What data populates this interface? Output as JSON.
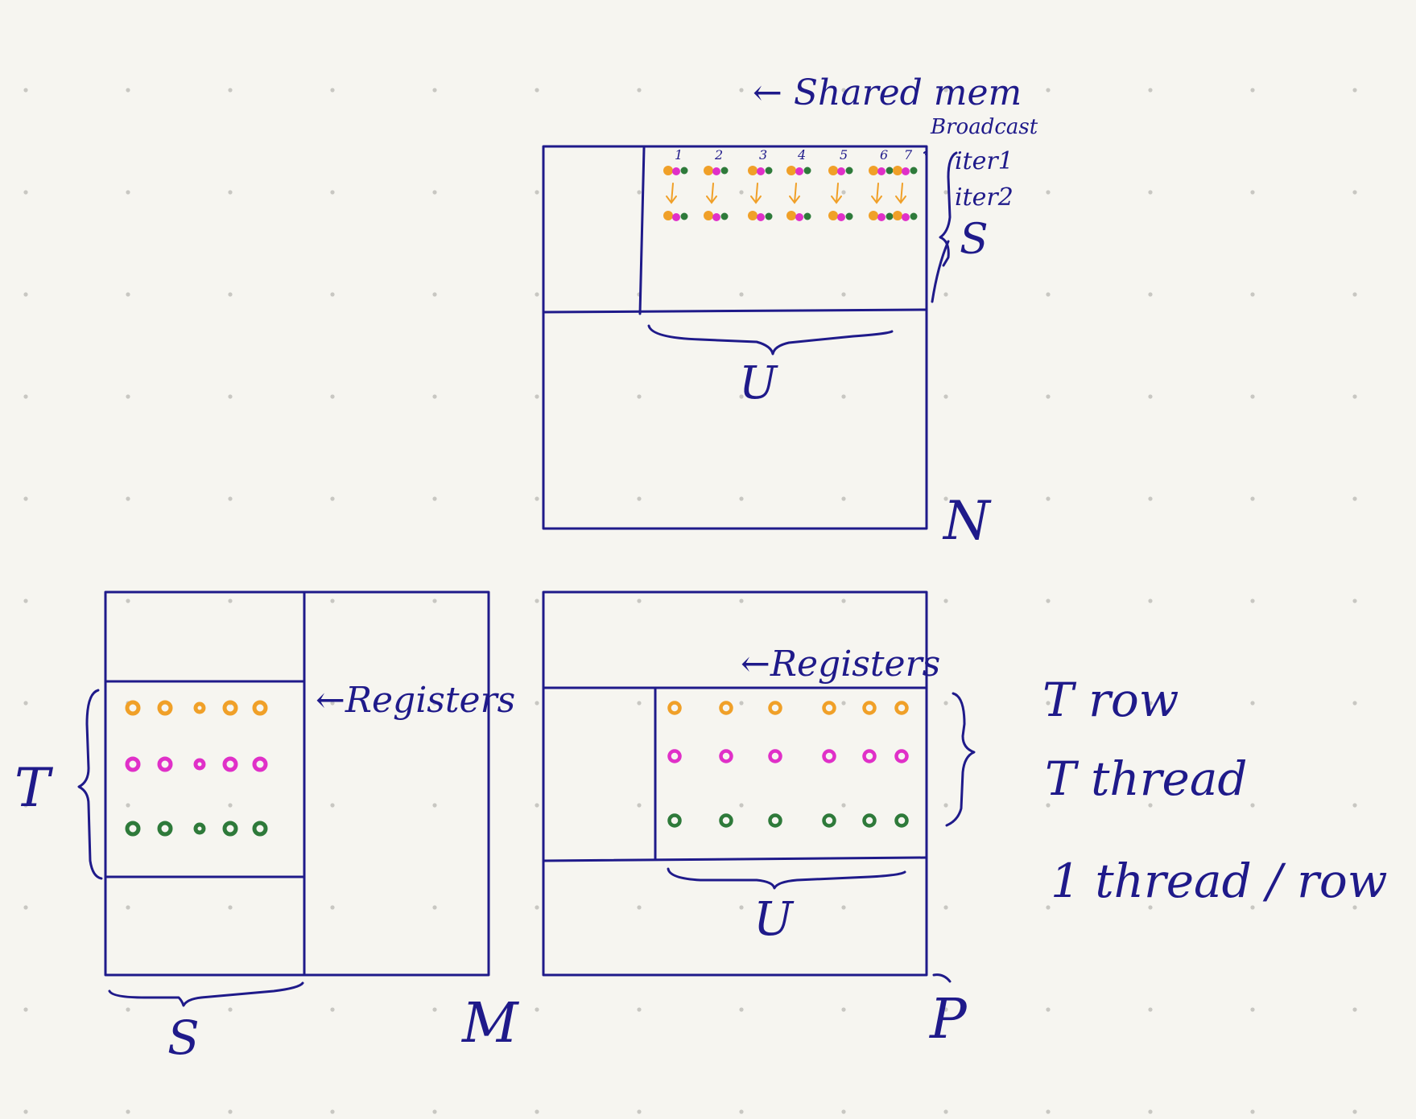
{
  "colors": {
    "ink": "#1f1a8a",
    "orange": "#f0a028",
    "magenta": "#e030c8",
    "green": "#2e7a3a",
    "paper": "#f6f5f0"
  },
  "labels": {
    "shared_mem": "← Shared mem",
    "broadcast": "Broadcast",
    "iter1": "iter1",
    "iter2": "iter2",
    "top_S": "S",
    "top_U": "U",
    "N": "N",
    "left_registers": "←Registers",
    "left_T": "T",
    "left_S": "S",
    "M": "M",
    "right_registers": "←Registers",
    "right_U": "U",
    "P": "P",
    "note_line1": "T row",
    "note_line2": "T thread",
    "note_line3": "1 thread / row"
  },
  "broadcast_numbers": [
    "1",
    "2",
    "3",
    "4",
    "5",
    "6",
    "7"
  ],
  "register_row_colors": [
    "orange",
    "magenta",
    "green"
  ]
}
